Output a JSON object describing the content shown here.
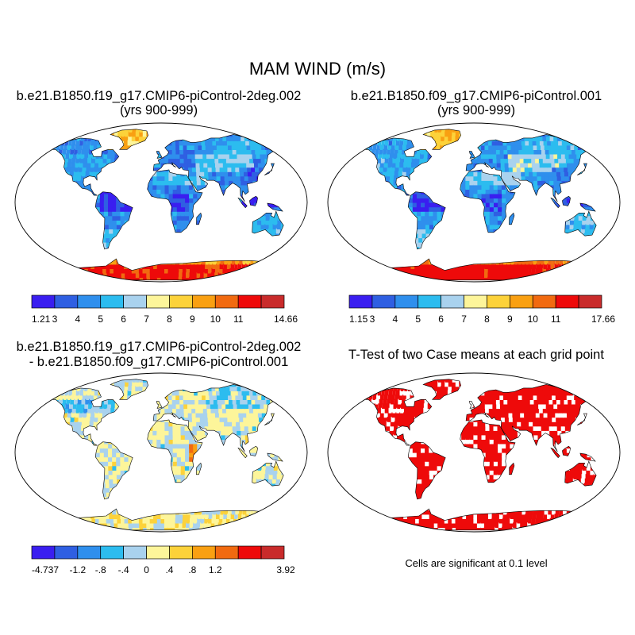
{
  "title": "MAM WIND (m/s)",
  "chart_data": [
    {
      "type": "heatmap",
      "panel": "top-left",
      "title_line1": "b.e21.B1850.f19_g17.CMIP6-piControl-2deg.002",
      "title_line2": "(yrs 900-999)",
      "variable": "MAM mean 10m wind speed (m/s) over land",
      "colorbar": {
        "colors": [
          "#3a1ef0",
          "#2f5fe2",
          "#2f8fed",
          "#2cbcef",
          "#a9d2ee",
          "#fdf59a",
          "#fcd23a",
          "#f9a012",
          "#f16a10",
          "#ee0a0a",
          "#c92b2b"
        ],
        "tick_labels": [
          "1.21",
          "3",
          "4",
          "5",
          "6",
          "7",
          "8",
          "9",
          "10",
          "11",
          "14.66"
        ]
      }
    },
    {
      "type": "heatmap",
      "panel": "top-right",
      "title_line1": "b.e21.B1850.f09_g17.CMIP6-piControl.001",
      "title_line2": "(yrs 900-999)",
      "variable": "MAM mean 10m wind speed (m/s) over land",
      "colorbar": {
        "colors": [
          "#3a1ef0",
          "#2f5fe2",
          "#2f8fed",
          "#2cbcef",
          "#a9d2ee",
          "#fdf59a",
          "#fcd23a",
          "#f9a012",
          "#f16a10",
          "#ee0a0a",
          "#c92b2b"
        ],
        "tick_labels": [
          "1.15",
          "3",
          "4",
          "5",
          "6",
          "7",
          "8",
          "9",
          "10",
          "11",
          "17.66"
        ]
      }
    },
    {
      "type": "heatmap",
      "panel": "bottom-left",
      "title_line1": "b.e21.B1850.f19_g17.CMIP6-piControl-2deg.002",
      "title_line2": "- b.e21.B1850.f09_g17.CMIP6-piControl.001",
      "variable": "Difference of MAM wind (m/s)",
      "colorbar": {
        "colors": [
          "#3a1ef0",
          "#2f5fe2",
          "#2f8fed",
          "#2cbcef",
          "#a9d2ee",
          "#fdf59a",
          "#fcd23a",
          "#f9a012",
          "#f16a10",
          "#ee0a0a",
          "#c92b2b"
        ],
        "tick_labels": [
          "-4.737",
          "",
          "-1.2",
          "-.8",
          "-.4",
          "0",
          ".4",
          ".8",
          "1.2",
          "",
          "3.92"
        ]
      }
    },
    {
      "type": "heatmap",
      "panel": "bottom-right",
      "title_line1": "T-Test of two Case means at each grid point",
      "variable": "Significance mask",
      "significant_color": "#ee0a0a",
      "note": "Cells are significant at 0.1 level"
    }
  ]
}
